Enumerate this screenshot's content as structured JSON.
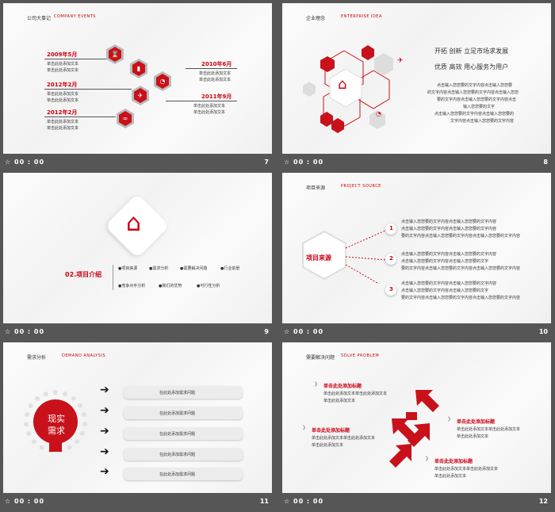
{
  "footers": [
    {
      "time": "00 : 00",
      "num": "7"
    },
    {
      "time": "00 : 00",
      "num": "8"
    },
    {
      "time": "00 : 00",
      "num": "9"
    },
    {
      "time": "00 : 00",
      "num": "10"
    },
    {
      "time": "00 : 00",
      "num": "11"
    },
    {
      "time": "00 : 00",
      "num": "12"
    }
  ],
  "s7": {
    "title": "公司大事记",
    "sub": "COMPANY EVENTS",
    "events": [
      {
        "year": "2009年5月",
        "l1": "单击此处添加文本",
        "l2": "单击此处添加文本"
      },
      {
        "year": "2012年2月",
        "l1": "单击此处添加文本",
        "l2": "单击此处添加文本"
      },
      {
        "year": "2012年2月",
        "l1": "单击此处添加文本",
        "l2": "单击此处添加文本"
      },
      {
        "year": "2010年6月",
        "l1": "单击此处添加文本",
        "l2": "单击此处添加文本"
      },
      {
        "year": "2011年9月",
        "l1": "单击此处添加文本",
        "l2": "单击此处添加文本"
      }
    ]
  },
  "s8": {
    "title": "企业理念",
    "sub": "ENTERPRISE IDEA",
    "h1": "开拓  创新  立足市场求发展",
    "h2": "优质  高效  用心服务为用户",
    "body": [
      "点击输入您您要的文字内容点击输入您您要",
      "的文字内容点击输入您您要的文字内容点击输入您您",
      "要的文字内容点击输入您您要的文字内容点击",
      "输入您您要的文字",
      "点击输入您您要的文字内容点击输入您您要的",
      "文字内容点击输入您您要的文字内容"
    ]
  },
  "s9": {
    "heading": "02.项目介绍",
    "items": [
      "●项目来源",
      "●需求分析",
      "●需要解决问题",
      "●行业前景",
      "●竞争对手分析",
      "●我们的优势",
      "●可行性分析"
    ]
  },
  "s10": {
    "title": "项目来源",
    "sub": "PROJECT SOURCE",
    "center": "项目来源",
    "rows": [
      {
        "n": "1",
        "lines": [
          "点击输入您您要的文字内容点击输入您您要的文字内容",
          "点击输入您您要的文字内容点击输入您您要的文字内容",
          "要的文字内容点击输入您您要的文字内容点击输入您您要的文字内容"
        ]
      },
      {
        "n": "2",
        "lines": [
          "点击输入您您要的文字内容点击输入您您要的文字内容",
          "点击输入您您要的文字内容点击输入您您要的文字",
          "要的文字内容点击输入您您要的文字内容点击输入您您要的文字内容"
        ]
      },
      {
        "n": "3",
        "lines": [
          "点击输入您您要的文字内容点击输入您您要的文字内容",
          "点击输入您您要的文字内容点击输入您您要的文字",
          "要的文字内容点击输入您您要的文字内容点击输入您您要的文字内容"
        ]
      }
    ]
  },
  "s11": {
    "title": "需求分析",
    "sub": "DEMAND ANALYSIS",
    "bulb1": "现实",
    "bulb2": "需求",
    "boxes": [
      "在此处添加需求问题",
      "在此处添加需求问题",
      "在此处添加需求问题",
      "在此处添加需求问题",
      "在此处添加需求问题"
    ]
  },
  "s12": {
    "title": "需要解决问题",
    "sub": "SOLVE PROBLEM",
    "blocks": [
      {
        "head": "单击此处添加标题",
        "l1": "单击此处添加文本单击此处添加文本",
        "l2": "单击此处添加文本"
      },
      {
        "head": "单击此处添加标题",
        "l1": "单击此处添加文本单击此处添加文本",
        "l2": "单击此处添加文本"
      },
      {
        "head": "单击此处添加标题",
        "l1": "单击此处添加文本单击此处添加文本",
        "l2": "单击此处添加文本"
      },
      {
        "head": "单击此处添加标题",
        "l1": "单击此处添加文本单击此处添加文本",
        "l2": "单击此处添加文本"
      }
    ]
  }
}
